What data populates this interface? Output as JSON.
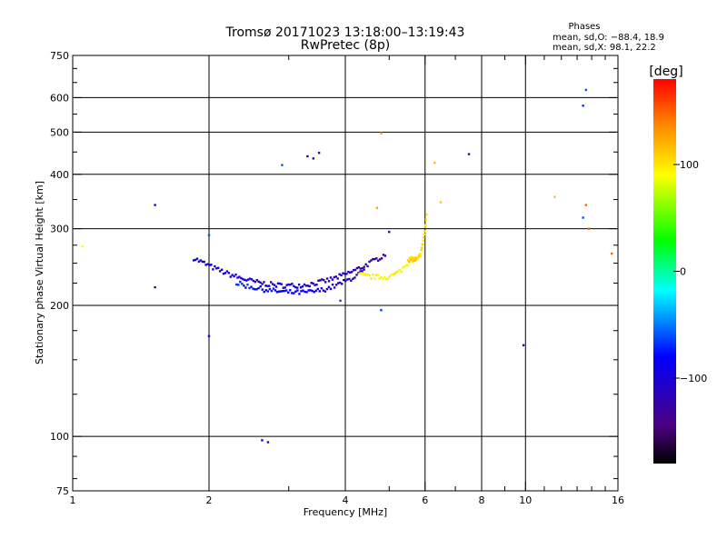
{
  "header": {
    "title": "Tromsø 20171023 13:18:00–13:19:43",
    "subtitle": "RwPretec (8p)",
    "phase_heading": "Phases",
    "phase_line_o": "mean, sd,O: −88.4, 18.9",
    "phase_line_x": "mean, sd,X:  98.1, 22.2"
  },
  "chart_data": {
    "type": "scatter",
    "xlabel": "Frequency [MHz]",
    "ylabel": "Stationary phase Virtual Height [km]",
    "x_scale": "log",
    "y_scale": "log",
    "xlim": [
      1,
      16
    ],
    "ylim": [
      75,
      750
    ],
    "grid": true,
    "x_grid_lines": [
      2,
      4,
      6,
      8,
      10
    ],
    "y_grid_lines": [
      100,
      200,
      300,
      400,
      500,
      600
    ],
    "x_tick_labels": [
      "1",
      "2",
      "4",
      "6",
      "8",
      "10",
      "16"
    ],
    "y_tick_labels": [
      "75",
      "100",
      "200",
      "300",
      "400",
      "500",
      "600",
      "750"
    ],
    "colorbar": {
      "label": "[deg]",
      "range": [
        -180,
        180
      ],
      "tick_labels": [
        "100",
        "0",
        "−100"
      ],
      "tick_values": [
        100,
        0,
        -100
      ]
    },
    "points": [
      {
        "f": 1.05,
        "h": 273,
        "p": 90
      },
      {
        "f": 1.52,
        "h": 340,
        "p": -125
      },
      {
        "f": 1.52,
        "h": 220,
        "p": -130
      },
      {
        "f": 2.0,
        "h": 290,
        "p": -60
      },
      {
        "f": 2.0,
        "h": 170,
        "p": -100
      },
      {
        "f": 2.62,
        "h": 98,
        "p": -80
      },
      {
        "f": 2.7,
        "h": 97,
        "p": -95
      },
      {
        "f": 2.9,
        "h": 420,
        "p": -60
      },
      {
        "f": 3.3,
        "h": 440,
        "p": -120
      },
      {
        "f": 3.4,
        "h": 435,
        "p": -115
      },
      {
        "f": 3.5,
        "h": 448,
        "p": -130
      },
      {
        "f": 3.9,
        "h": 205,
        "p": -65
      },
      {
        "f": 4.7,
        "h": 335,
        "p": 125
      },
      {
        "f": 4.8,
        "h": 195,
        "p": -65
      },
      {
        "f": 4.8,
        "h": 497,
        "p": 130
      },
      {
        "f": 5.0,
        "h": 295,
        "p": -140
      },
      {
        "f": 6.3,
        "h": 425,
        "p": 115
      },
      {
        "f": 6.5,
        "h": 345,
        "p": 110
      },
      {
        "f": 7.5,
        "h": 445,
        "p": -140
      },
      {
        "f": 9.9,
        "h": 162,
        "p": -130
      },
      {
        "f": 11.6,
        "h": 355,
        "p": 110
      },
      {
        "f": 13.4,
        "h": 575,
        "p": -70
      },
      {
        "f": 13.6,
        "h": 625,
        "p": -60
      },
      {
        "f": 13.4,
        "h": 318,
        "p": -60
      },
      {
        "f": 13.6,
        "h": 340,
        "p": 150
      },
      {
        "f": 13.8,
        "h": 300,
        "p": 150
      },
      {
        "f": 15.5,
        "h": 263,
        "p": 150
      }
    ],
    "traces": [
      {
        "name": "",
        "f_range": [
          1.85,
          4.9
        ],
        "h_vertex": 222,
        "h_start": 257,
        "h_end": 262,
        "phase_start": -95,
        "phase_end": -120,
        "n": 110
      },
      {
        "name": "",
        "f_range": [
          2.3,
          4.4
        ],
        "h_vertex": 214,
        "h_start": 225,
        "h_end": 240,
        "phase_start": -70,
        "phase_end": -110,
        "n": 70
      },
      {
        "name": "",
        "f_range": [
          4.3,
          5.5
        ],
        "h_vertex": 232,
        "h_start": 235,
        "h_end": 250,
        "phase_start": 90,
        "phase_end": 95,
        "n": 30
      },
      {
        "name": "",
        "f_range": [
          5.5,
          6.05
        ],
        "h_vertex": 255,
        "h_start": 255,
        "h_end": 320,
        "phase_start": 110,
        "phase_end": 100,
        "n": 40
      }
    ]
  }
}
